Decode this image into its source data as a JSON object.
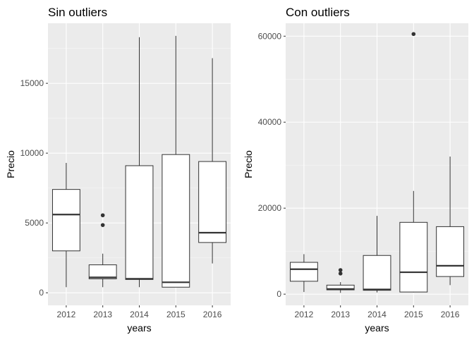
{
  "chart_data": [
    {
      "type": "box",
      "title": "Sin outliers",
      "xlabel": "years",
      "ylabel": "Precio",
      "categories": [
        "2012",
        "2013",
        "2014",
        "2015",
        "2016"
      ],
      "yticks": [
        0,
        5000,
        10000,
        15000
      ],
      "ytick_labels": [
        "0",
        "5000",
        "10000",
        "15000"
      ],
      "ylim": [
        -900,
        19300
      ],
      "boxes": [
        {
          "x": "2012",
          "min": 400,
          "q1": 3000,
          "median": 5600,
          "q3": 7400,
          "max": 9300,
          "outliers": []
        },
        {
          "x": "2013",
          "min": 400,
          "q1": 1000,
          "median": 1100,
          "q3": 2000,
          "max": 2800,
          "outliers": [
            4850,
            5550
          ]
        },
        {
          "x": "2014",
          "min": 400,
          "q1": 950,
          "median": 1000,
          "q3": 9100,
          "max": 18300,
          "outliers": []
        },
        {
          "x": "2015",
          "min": 400,
          "q1": 400,
          "median": 750,
          "q3": 9900,
          "max": 18400,
          "outliers": []
        },
        {
          "x": "2016",
          "min": 2100,
          "q1": 3600,
          "median": 4300,
          "q3": 9400,
          "max": 16800,
          "outliers": []
        }
      ],
      "grid": true
    },
    {
      "type": "box",
      "title": "Con outliers",
      "xlabel": "years",
      "ylabel": "Precio",
      "categories": [
        "2012",
        "2013",
        "2014",
        "2015",
        "2016"
      ],
      "yticks": [
        0,
        20000,
        40000,
        60000
      ],
      "ytick_labels": [
        "0",
        "20000",
        "40000",
        "60000"
      ],
      "ylim": [
        -2600,
        63000
      ],
      "boxes": [
        {
          "x": "2012",
          "min": 500,
          "q1": 3000,
          "median": 5800,
          "q3": 7400,
          "max": 9300,
          "outliers": []
        },
        {
          "x": "2013",
          "min": 300,
          "q1": 1000,
          "median": 1200,
          "q3": 2100,
          "max": 2800,
          "outliers": [
            4800,
            5600
          ]
        },
        {
          "x": "2014",
          "min": 400,
          "q1": 900,
          "median": 1100,
          "q3": 9000,
          "max": 18200,
          "outliers": []
        },
        {
          "x": "2015",
          "min": 400,
          "q1": 500,
          "median": 5100,
          "q3": 16700,
          "max": 24000,
          "outliers": [
            60500
          ]
        },
        {
          "x": "2016",
          "min": 2100,
          "q1": 4100,
          "median": 6600,
          "q3": 15700,
          "max": 32000,
          "outliers": []
        }
      ],
      "grid": true
    }
  ]
}
